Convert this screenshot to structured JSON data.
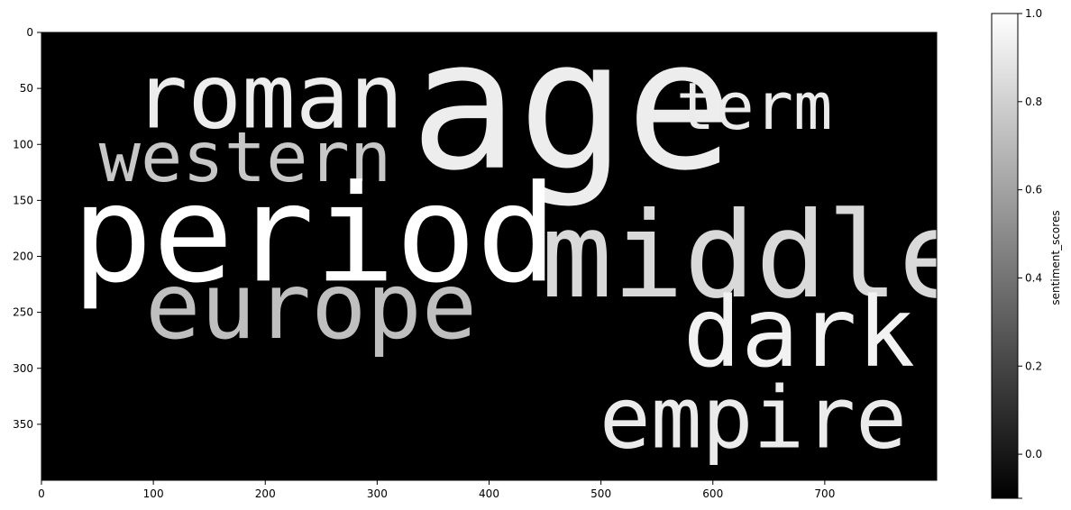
{
  "chart_data": {
    "type": "heatmap",
    "subtype": "word cloud image (imshow) with colorbar",
    "title": "",
    "xlabel": "",
    "ylabel": "",
    "xlim": [
      0,
      800
    ],
    "ylim": [
      400,
      0
    ],
    "x_ticks": [
      0,
      100,
      200,
      300,
      400,
      500,
      600,
      700
    ],
    "y_ticks": [
      0,
      50,
      100,
      150,
      200,
      250,
      300,
      350
    ],
    "background_color": "#000000",
    "colormap": "gray",
    "words": [
      {
        "text": "age",
        "x": 474,
        "y": 65,
        "size": 160,
        "gray": 0.93
      },
      {
        "text": "roman",
        "x": 203,
        "y": 58,
        "size": 80,
        "gray": 0.93
      },
      {
        "text": "term",
        "x": 637,
        "y": 66,
        "size": 58,
        "gray": 0.92
      },
      {
        "text": "western",
        "x": 182,
        "y": 112,
        "size": 62,
        "gray": 0.78
      },
      {
        "text": "period",
        "x": 244,
        "y": 181,
        "size": 120,
        "gray": 1.0
      },
      {
        "text": "middle",
        "x": 638,
        "y": 200,
        "size": 106,
        "gray": 0.85
      },
      {
        "text": "europe",
        "x": 241,
        "y": 245,
        "size": 82,
        "gray": 0.75
      },
      {
        "text": "dark",
        "x": 677,
        "y": 269,
        "size": 86,
        "gray": 0.95
      },
      {
        "text": "empire",
        "x": 636,
        "y": 345,
        "size": 76,
        "gray": 0.92
      }
    ],
    "colorbar": {
      "label": "sentiment_scores",
      "min": -0.1,
      "max": 1.0,
      "ticks": [
        -0.1,
        0.0,
        0.2,
        0.4,
        0.6,
        0.8,
        1.0
      ],
      "tick_labels": [
        "",
        "0.0",
        "0.2",
        "0.4",
        "0.6",
        "0.8",
        "1.0"
      ]
    }
  }
}
